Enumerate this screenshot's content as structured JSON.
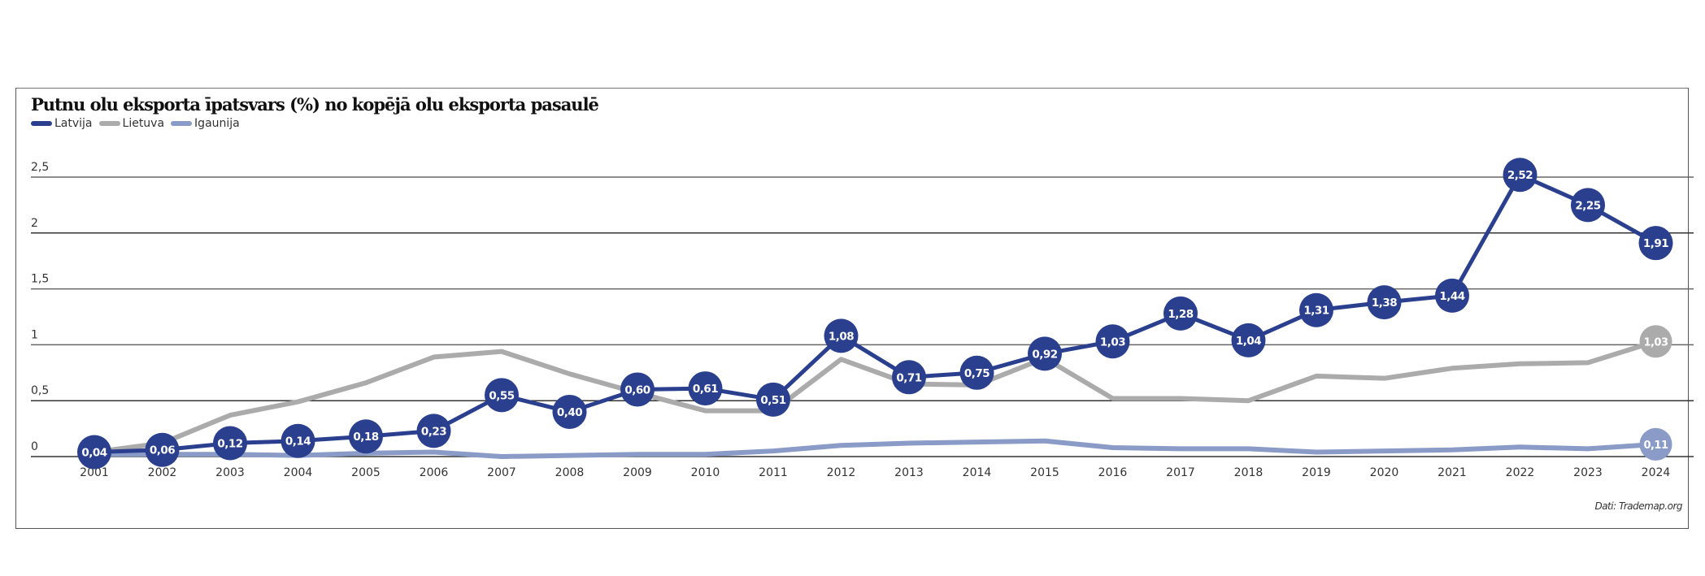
{
  "chart_data": {
    "type": "line",
    "title": "Putnu olu eksporta īpatsvars (%) no kopējā olu eksporta pasaulē",
    "xlabel": "",
    "ylabel": "",
    "x": [
      "2001",
      "2002",
      "2003",
      "2004",
      "2005",
      "2006",
      "2007",
      "2008",
      "2009",
      "2010",
      "2011",
      "2012",
      "2013",
      "2014",
      "2015",
      "2016",
      "2017",
      "2018",
      "2019",
      "2020",
      "2021",
      "2022",
      "2023",
      "2024"
    ],
    "yticks": [
      "0",
      "0,5",
      "1",
      "1,5",
      "2",
      "2,5"
    ],
    "ytick_values": [
      0,
      0.5,
      1,
      1.5,
      2,
      2.5
    ],
    "ylim": [
      0,
      2.5
    ],
    "grid": true,
    "legend_position": "top-left",
    "series": [
      {
        "name": "Latvija",
        "color": "#2b3f8f",
        "values": [
          0.04,
          0.06,
          0.12,
          0.14,
          0.18,
          0.23,
          0.55,
          0.4,
          0.6,
          0.61,
          0.51,
          1.08,
          0.71,
          0.75,
          0.92,
          1.03,
          1.28,
          1.04,
          1.31,
          1.38,
          1.44,
          2.52,
          2.25,
          1.91
        ],
        "labels": [
          "0,04",
          "0,06",
          "0,12",
          "0,14",
          "0,18",
          "0,23",
          "0,55",
          "0,40",
          "0,60",
          "0,61",
          "0,51",
          "1,08",
          "0,71",
          "0,75",
          "0,92",
          "1,03",
          "1,28",
          "1,04",
          "1,31",
          "1,38",
          "1,44",
          "2,52",
          "2,25",
          "1,91"
        ]
      },
      {
        "name": "Lietuva",
        "color": "#ababab",
        "values": [
          0.04,
          0.12,
          0.37,
          0.49,
          0.66,
          0.89,
          0.94,
          0.74,
          0.57,
          0.41,
          0.41,
          0.87,
          0.65,
          0.64,
          0.88,
          0.52,
          0.52,
          0.5,
          0.72,
          0.7,
          0.79,
          0.83,
          0.84,
          1.03
        ],
        "end_label": "1,03"
      },
      {
        "name": "Igaunija",
        "color": "#8a9bc7",
        "values": [
          0.02,
          0.02,
          0.02,
          0.01,
          0.03,
          0.04,
          0.0,
          0.01,
          0.02,
          0.02,
          0.05,
          0.1,
          0.12,
          0.13,
          0.14,
          0.08,
          0.07,
          0.07,
          0.04,
          0.05,
          0.06,
          0.085,
          0.07,
          0.11
        ],
        "end_label": "0,11"
      }
    ],
    "source": "Dati: Trademap.org"
  }
}
